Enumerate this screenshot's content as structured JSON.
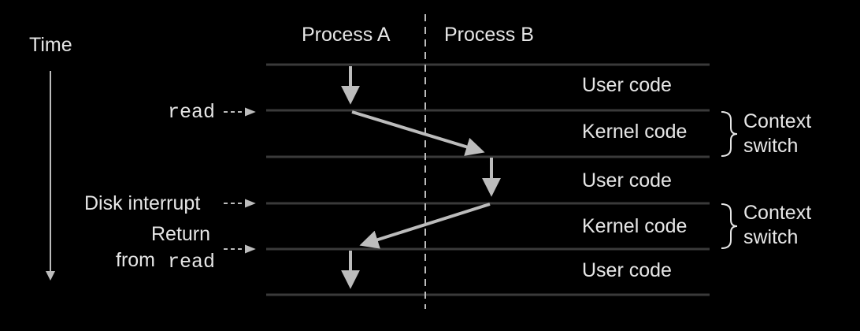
{
  "time_label": "Time",
  "columns": {
    "process_a": "Process A",
    "process_b": "Process B"
  },
  "bands": [
    {
      "label": "User code"
    },
    {
      "label": "Kernel code"
    },
    {
      "label": "User code"
    },
    {
      "label": "Kernel code"
    },
    {
      "label": "User code"
    }
  ],
  "events": {
    "read": "read",
    "disk_interrupt": "Disk interrupt",
    "return_line1": "Return",
    "return_from": "from",
    "return_read": "read"
  },
  "context_switches": [
    {
      "line1": "Context",
      "line2": "switch"
    },
    {
      "line1": "Context",
      "line2": "switch"
    }
  ],
  "colors": {
    "background": "#000000",
    "lines": "#3a3a3a",
    "arrows": "#bcbcbc",
    "text": "#e6e6e6"
  }
}
